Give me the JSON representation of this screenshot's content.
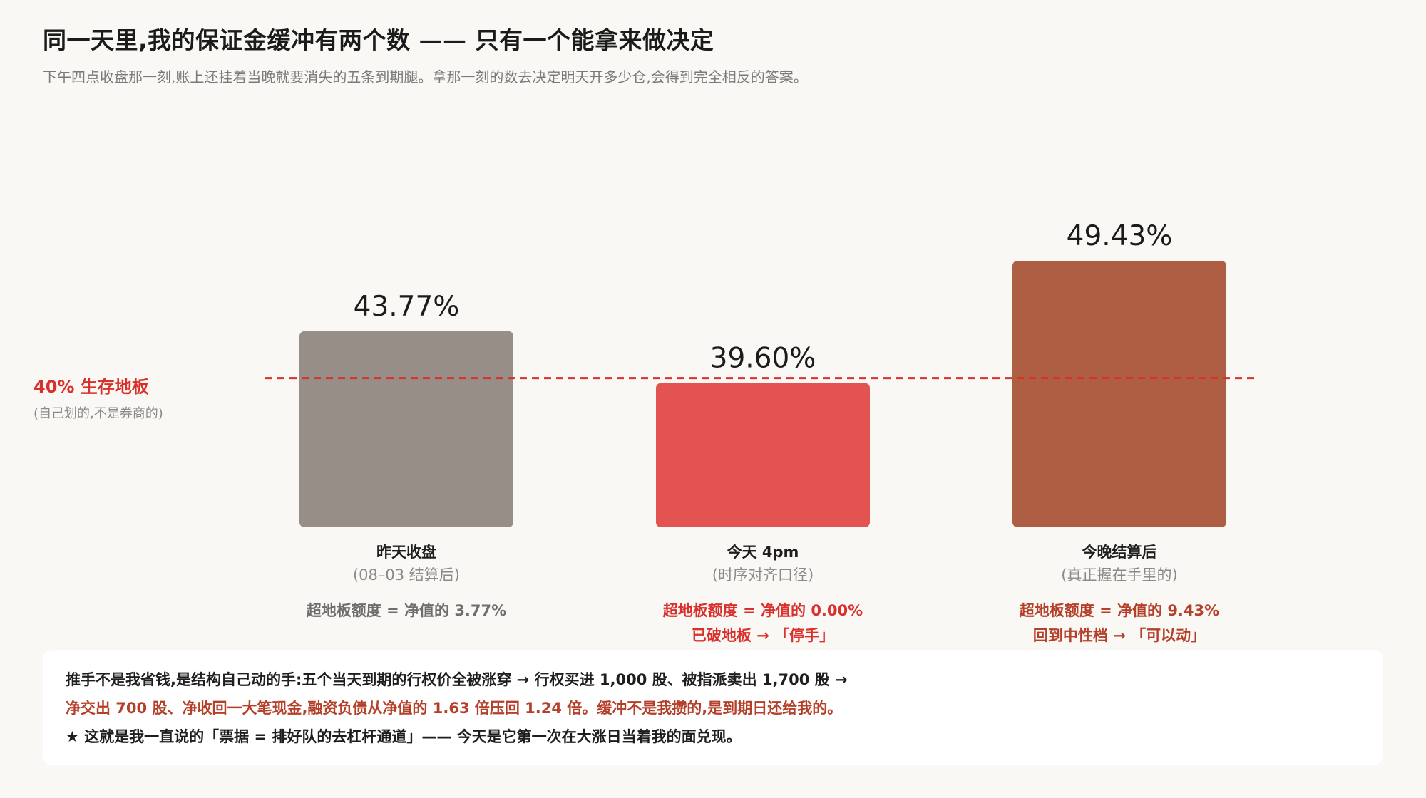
{
  "header": {
    "title": "同一天里,我的保证金缓冲有两个数 —— 只有一个能拿来做决定",
    "subtitle": "下午四点收盘那一刻,账上还挂着当晚就要消失的五条到期腿。拿那一刻的数去决定明天开多少仓,会得到完全相反的答案。"
  },
  "chart_data": {
    "type": "bar",
    "categories": [
      "昨天收盘",
      "今天 4pm",
      "今晚结算后"
    ],
    "category_subs": [
      "(08–03 结算后)",
      "(时序对齐口径)",
      "(真正握在手里的)"
    ],
    "values": [
      43.77,
      39.6,
      49.43
    ],
    "value_labels": [
      "43.77%",
      "39.60%",
      "49.43%"
    ],
    "colors": [
      "#988e88",
      "#e25352",
      "#ae5f43"
    ],
    "threshold": {
      "value": 40,
      "label": "40% 生存地板",
      "note": "(自己划的,不是券商的)",
      "color": "#d9302c"
    },
    "notes": [
      {
        "line1": "超地板额度 = 净值的 3.77%",
        "line2": "",
        "color": "#6e6e6e"
      },
      {
        "line1": "超地板额度 = 净值的 0.00%",
        "line2": "已破地板 → 「停手」",
        "color": "#d9302c"
      },
      {
        "line1": "超地板额度 = 净值的 9.43%",
        "line2": "回到中性档 → 「可以动」",
        "color": "#b5402a"
      }
    ]
  },
  "footer_note": {
    "line1": "推手不是我省钱,是结构自己动的手:五个当天到期的行权价全被涨穿 → 行权买进 1,000 股、被指派卖出 1,700 股 →",
    "line2": "净交出 700 股、净收回一大笔现金,融资负债从净值的 1.63 倍压回 1.24 倍。缓冲不是我攒的,是到期日还给我的。",
    "line3": "★ 这就是我一直说的「票据 = 排好队的去杠杆通道」—— 今天是它第一次在大涨日当着我的面兑现。"
  }
}
